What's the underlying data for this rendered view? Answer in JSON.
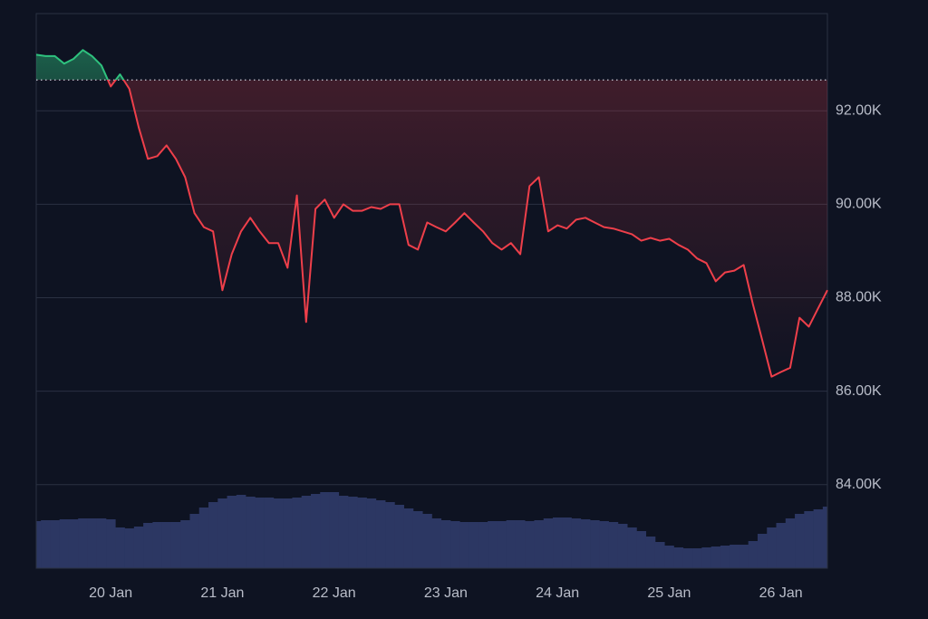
{
  "chart_data": {
    "type": "line",
    "categories": [
      null,
      null,
      null,
      null,
      null,
      null,
      null,
      null,
      "20 Jan",
      null,
      null,
      null,
      null,
      null,
      null,
      null,
      null,
      null,
      null,
      null,
      "21 Jan",
      null,
      null,
      null,
      null,
      null,
      null,
      null,
      null,
      null,
      null,
      null,
      "22 Jan",
      null,
      null,
      null,
      null,
      null,
      null,
      null,
      null,
      null,
      null,
      null,
      "23 Jan",
      null,
      null,
      null,
      null,
      null,
      null,
      null,
      null,
      null,
      null,
      null,
      "24 Jan",
      null,
      null,
      null,
      null,
      null,
      null,
      null,
      null,
      null,
      null,
      null,
      "25 Jan",
      null,
      null,
      null,
      null,
      null,
      null,
      null,
      null,
      null,
      null,
      null,
      "26 Jan",
      null,
      null,
      null,
      null,
      null
    ],
    "values": [
      93200,
      93170,
      93170,
      93010,
      93110,
      93300,
      93170,
      92970,
      92520,
      92780,
      92470,
      91650,
      90970,
      91030,
      91260,
      90970,
      90580,
      89810,
      89510,
      89420,
      88160,
      88930,
      89420,
      89710,
      89420,
      89170,
      89170,
      88640,
      90190,
      87480,
      89900,
      90100,
      89710,
      90000,
      89860,
      89860,
      89940,
      89900,
      90000,
      90000,
      89130,
      89030,
      89610,
      89510,
      89420,
      89610,
      89810,
      89610,
      89420,
      89170,
      89030,
      89170,
      88930,
      90390,
      90580,
      89420,
      89550,
      89480,
      89670,
      89710,
      89610,
      89510,
      89480,
      89420,
      89360,
      89220,
      89280,
      89220,
      89260,
      89130,
      89030,
      88840,
      88740,
      88350,
      88540,
      88580,
      88700,
      87860,
      87090,
      86310,
      86410,
      86500,
      87570,
      87380,
      87770,
      88160
    ],
    "baseline": 92660,
    "colors": {
      "above": "#2ec27e",
      "below": "#ee3f4a",
      "volume": "#2c3763"
    },
    "volume": [
      52,
      53,
      53,
      54,
      54,
      55,
      55,
      55,
      54,
      45,
      44,
      46,
      50,
      51,
      51,
      51,
      53,
      60,
      67,
      73,
      77,
      80,
      81,
      79,
      78,
      78,
      77,
      77,
      78,
      80,
      82,
      84,
      84,
      80,
      79,
      78,
      77,
      75,
      73,
      70,
      66,
      63,
      60,
      55,
      53,
      52,
      51,
      51,
      51,
      52,
      52,
      53,
      53,
      52,
      53,
      55,
      56,
      56,
      55,
      54,
      53,
      52,
      51,
      49,
      45,
      41,
      35,
      29,
      25,
      23,
      22,
      22,
      23,
      24,
      25,
      26,
      26,
      30,
      38,
      45,
      50,
      55,
      60,
      63,
      65,
      68
    ],
    "vlim": [
      0,
      100
    ],
    "ylim": [
      82210,
      94080
    ],
    "yticks": [
      {
        "value": 84000,
        "label": "84.00K"
      },
      {
        "value": 86000,
        "label": "86.00K"
      },
      {
        "value": 88000,
        "label": "88.00K"
      },
      {
        "value": 90000,
        "label": "90.00K"
      },
      {
        "value": 92000,
        "label": "92.00K"
      }
    ],
    "grid": true
  }
}
